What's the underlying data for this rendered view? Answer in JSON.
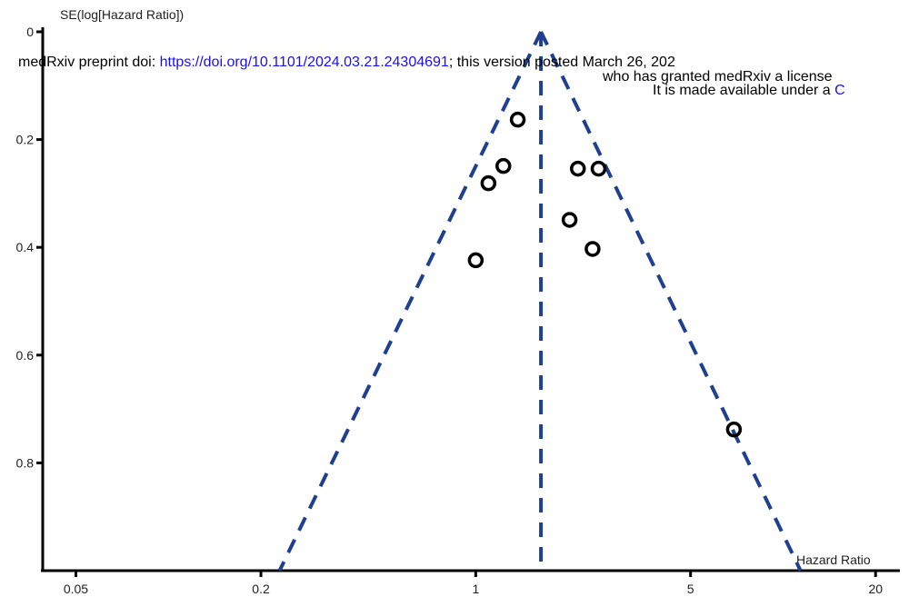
{
  "chart_data": {
    "type": "scatter",
    "y_label": "SE(log[Hazard Ratio])",
    "x_label": "Hazard Ratio",
    "xscale": "log",
    "y_inverted": true,
    "xlim": [
      0.039,
      24
    ],
    "ylim": [
      0,
      1
    ],
    "xticks": [
      0.05,
      0.2,
      1,
      5,
      20
    ],
    "yticks": [
      0,
      0.2,
      0.4,
      0.6,
      0.8
    ],
    "marker_color": "#000000",
    "x": [
      1.37,
      1.23,
      1.1,
      2.15,
      2.51,
      2.02,
      2.4,
      1.0,
      6.92
    ],
    "values": [
      0.163,
      0.249,
      0.281,
      0.254,
      0.254,
      0.349,
      0.403,
      0.424,
      0.738
    ],
    "funnel_color": "#1f3f8f",
    "funnel_lines": [
      {
        "x": [
          1.63,
          0.23
        ],
        "y": [
          0,
          1
        ]
      },
      {
        "x": [
          1.63,
          1.63
        ],
        "y": [
          0,
          1
        ]
      },
      {
        "x": [
          1.63,
          11.4
        ],
        "y": [
          0,
          1
        ]
      }
    ]
  },
  "overlay": {
    "line1": [
      "medRxiv preprint doi: ",
      "https://doi.org/10.1101/2024.03.21.24304691",
      "; this version posted March 26, 202"
    ],
    "line2": "who has granted medRxiv a license",
    "line3": [
      "It is made available under a ",
      "C"
    ]
  }
}
